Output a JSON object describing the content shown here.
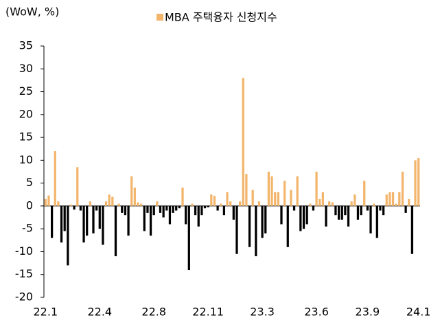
{
  "chart_data": {
    "type": "bar",
    "unit_label": "(WoW, %)",
    "series": [
      {
        "name": "MBA 주택융자 신청지수",
        "color": "#f2b56b",
        "negative_color": "#000000",
        "values": [
          1.5,
          2.3,
          -7,
          12,
          1,
          -8,
          -5.5,
          -13,
          0.3,
          -0.8,
          8.5,
          -1,
          -8,
          -6.5,
          1,
          -6,
          -1,
          -5,
          -8.5,
          1,
          2.5,
          2,
          -11,
          0.5,
          -1.5,
          -2,
          -6.5,
          6.5,
          4,
          0.8,
          0.5,
          -5.5,
          -1.5,
          -6.5,
          -2,
          1,
          -1.5,
          -2.5,
          -1,
          -4,
          -1.5,
          -1,
          -0.5,
          4,
          -4,
          -14,
          0.5,
          -2,
          -4.5,
          -2,
          -0.5,
          -0.3,
          2.5,
          2.2,
          -1,
          0.5,
          -2,
          3,
          1,
          -3,
          -10.5,
          1,
          28,
          7,
          -9,
          3.5,
          -11,
          1,
          -7,
          -6,
          7.5,
          6.5,
          3,
          3,
          -4,
          5.5,
          -9,
          3.5,
          -1,
          6.5,
          -5.5,
          -5,
          -4,
          0.5,
          -1,
          7.5,
          1.5,
          3,
          -4.5,
          1,
          0.8,
          -2,
          -3,
          -3,
          -2,
          -4.5,
          1,
          2.5,
          -3,
          -2,
          5.5,
          -1,
          -6,
          0.5,
          -7,
          -1,
          -2,
          2.5,
          3,
          3,
          0.5,
          3,
          7.5,
          -1.5,
          1.5,
          -10.5,
          10,
          10.5
        ]
      }
    ],
    "categories": [
      "22.1",
      null,
      null,
      null,
      null,
      null,
      null,
      null,
      null,
      null,
      null,
      null,
      null,
      null,
      null,
      null,
      null,
      "22.4",
      null,
      null,
      null,
      null,
      null,
      null,
      null,
      null,
      null,
      null,
      null,
      null,
      null,
      null,
      null,
      null,
      "22.8",
      null,
      null,
      null,
      null,
      null,
      null,
      null,
      null,
      null,
      null,
      null,
      null,
      null,
      null,
      null,
      null,
      "22.11",
      null,
      null,
      null,
      null,
      null,
      null,
      null,
      null,
      null,
      null,
      null,
      null,
      null,
      null,
      null,
      null,
      "23.3",
      null,
      null,
      null,
      null,
      null,
      null,
      null,
      null,
      null,
      null,
      null,
      null,
      null,
      null,
      null,
      null,
      "23.6",
      null,
      null,
      null,
      null,
      null,
      null,
      null,
      null,
      null,
      null,
      null,
      null,
      null,
      null,
      null,
      "23.9",
      null,
      null,
      null,
      null,
      null,
      null,
      null,
      null,
      null,
      null,
      null,
      null,
      null,
      null,
      null,
      "24.1"
    ],
    "ylim": [
      -20,
      35
    ],
    "yticks": [
      -20,
      -15,
      -10,
      -5,
      0,
      5,
      10,
      15,
      20,
      25,
      30,
      35
    ]
  }
}
